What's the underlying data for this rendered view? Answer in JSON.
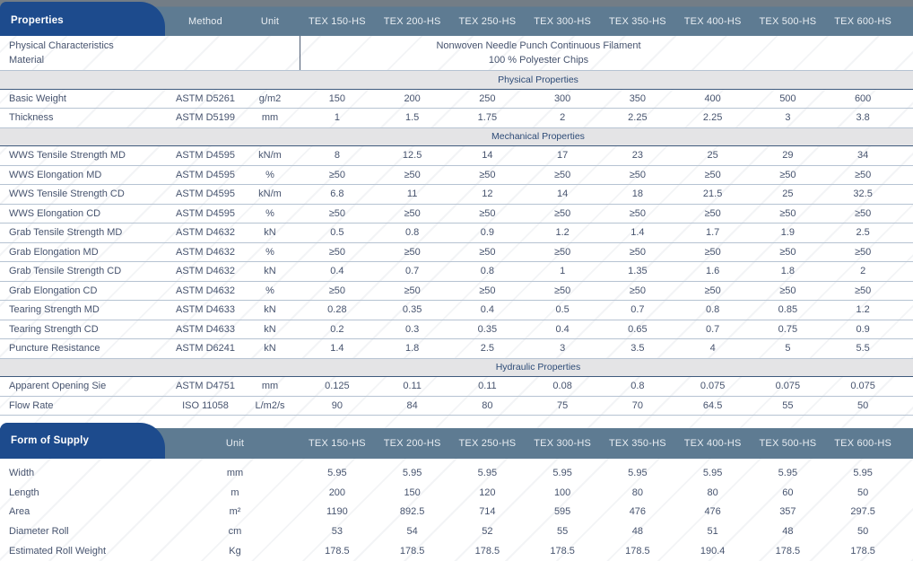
{
  "colors": {
    "tab_blue": "#1d4b8d",
    "header_band_slate": "#5e7b92",
    "section_band_gray": "#e4e4e6",
    "section_title_blue": "#2d4b77",
    "body_text": "#46536e",
    "row_line": "#b6c3d2",
    "section_bottom_line": "#3f5a7d"
  },
  "table1": {
    "tab_label": "Properties",
    "columns": {
      "method": "Method",
      "unit": "Unit"
    },
    "products": [
      "TEX 150-HS",
      "TEX 200-HS",
      "TEX 250-HS",
      "TEX 300-HS",
      "TEX 350-HS",
      "TEX 400-HS",
      "TEX 500-HS",
      "TEX 600-HS"
    ],
    "material_row": {
      "label_line1": "Physical Characteristics",
      "label_line2": "Material",
      "value_line1": "Nonwoven Needle Punch Continuous Filament",
      "value_line2": "100 % Polyester Chips"
    },
    "sections": [
      {
        "title": "Physical Properties",
        "rows": [
          {
            "property": "Basic Weight",
            "method": "ASTM D5261",
            "unit": "g/m2",
            "values": [
              "150",
              "200",
              "250",
              "300",
              "350",
              "400",
              "500",
              "600"
            ]
          },
          {
            "property": "Thickness",
            "method": "ASTM D5199",
            "unit": "mm",
            "values": [
              "1",
              "1.5",
              "1.75",
              "2",
              "2.25",
              "2.25",
              "3",
              "3.8"
            ]
          }
        ]
      },
      {
        "title": "Mechanical Properties",
        "rows": [
          {
            "property": "WWS Tensile Strength MD",
            "method": "ASTM D4595",
            "unit": "kN/m",
            "values": [
              "8",
              "12.5",
              "14",
              "17",
              "23",
              "25",
              "29",
              "34"
            ]
          },
          {
            "property": "WWS Elongation MD",
            "method": "ASTM D4595",
            "unit": "%",
            "values": [
              "≥50",
              "≥50",
              "≥50",
              "≥50",
              "≥50",
              "≥50",
              "≥50",
              "≥50"
            ]
          },
          {
            "property": "WWS Tensile Strength CD",
            "method": "ASTM D4595",
            "unit": "kN/m",
            "values": [
              "6.8",
              "11",
              "12",
              "14",
              "18",
              "21.5",
              "25",
              "32.5"
            ]
          },
          {
            "property": "WWS Elongation CD",
            "method": "ASTM D4595",
            "unit": "%",
            "values": [
              "≥50",
              "≥50",
              "≥50",
              "≥50",
              "≥50",
              "≥50",
              "≥50",
              "≥50"
            ]
          },
          {
            "property": "Grab Tensile Strength MD",
            "method": "ASTM D4632",
            "unit": "kN",
            "values": [
              "0.5",
              "0.8",
              "0.9",
              "1.2",
              "1.4",
              "1.7",
              "1.9",
              "2.5"
            ]
          },
          {
            "property": "Grab Elongation MD",
            "method": "ASTM D4632",
            "unit": "%",
            "values": [
              "≥50",
              "≥50",
              "≥50",
              "≥50",
              "≥50",
              "≥50",
              "≥50",
              "≥50"
            ]
          },
          {
            "property": "Grab Tensile Strength CD",
            "method": "ASTM D4632",
            "unit": "kN",
            "values": [
              "0.4",
              "0.7",
              "0.8",
              "1",
              "1.35",
              "1.6",
              "1.8",
              "2"
            ]
          },
          {
            "property": "Grab Elongation CD",
            "method": "ASTM D4632",
            "unit": "%",
            "values": [
              "≥50",
              "≥50",
              "≥50",
              "≥50",
              "≥50",
              "≥50",
              "≥50",
              "≥50"
            ]
          },
          {
            "property": "Tearing Strength MD",
            "method": "ASTM D4633",
            "unit": "kN",
            "values": [
              "0.28",
              "0.35",
              "0.4",
              "0.5",
              "0.7",
              "0.8",
              "0.85",
              "1.2"
            ]
          },
          {
            "property": "Tearing Strength CD",
            "method": "ASTM D4633",
            "unit": "kN",
            "values": [
              "0.2",
              "0.3",
              "0.35",
              "0.4",
              "0.65",
              "0.7",
              "0.75",
              "0.9"
            ]
          },
          {
            "property": "Puncture Resistance",
            "method": "ASTM D6241",
            "unit": "kN",
            "values": [
              "1.4",
              "1.8",
              "2.5",
              "3",
              "3.5",
              "4",
              "5",
              "5.5"
            ]
          }
        ]
      },
      {
        "title": "Hydraulic Properties",
        "rows": [
          {
            "property": "Apparent Opening Sie",
            "method": "ASTM D4751",
            "unit": "mm",
            "values": [
              "0.125",
              "0.11",
              "0.11",
              "0.08",
              "0.8",
              "0.075",
              "0.075",
              "0.075"
            ]
          },
          {
            "property": "Flow Rate",
            "method": "ISO 11058",
            "unit": "L/m2/s",
            "values": [
              "90",
              "84",
              "80",
              "75",
              "70",
              "64.5",
              "55",
              "50"
            ]
          }
        ]
      }
    ]
  },
  "table2": {
    "tab_label": "Form of Supply",
    "columns": {
      "unit": "Unit"
    },
    "products": [
      "TEX 150-HS",
      "TEX 200-HS",
      "TEX 250-HS",
      "TEX 300-HS",
      "TEX 350-HS",
      "TEX 400-HS",
      "TEX 500-HS",
      "TEX 600-HS"
    ],
    "rows": [
      {
        "property": "Width",
        "unit": "mm",
        "values": [
          "5.95",
          "5.95",
          "5.95",
          "5.95",
          "5.95",
          "5.95",
          "5.95",
          "5.95"
        ]
      },
      {
        "property": "Length",
        "unit": "m",
        "values": [
          "200",
          "150",
          "120",
          "100",
          "80",
          "80",
          "60",
          "50"
        ]
      },
      {
        "property": "Area",
        "unit": "m²",
        "values": [
          "1190",
          "892.5",
          "714",
          "595",
          "476",
          "476",
          "357",
          "297.5"
        ]
      },
      {
        "property": "Diameter Roll",
        "unit": "cm",
        "values": [
          "53",
          "54",
          "52",
          "55",
          "48",
          "51",
          "48",
          "50"
        ]
      },
      {
        "property": "Estimated Roll Weight",
        "unit": "Kg",
        "values": [
          "178.5",
          "178.5",
          "178.5",
          "178.5",
          "178.5",
          "190.4",
          "178.5",
          "178.5"
        ]
      }
    ]
  }
}
